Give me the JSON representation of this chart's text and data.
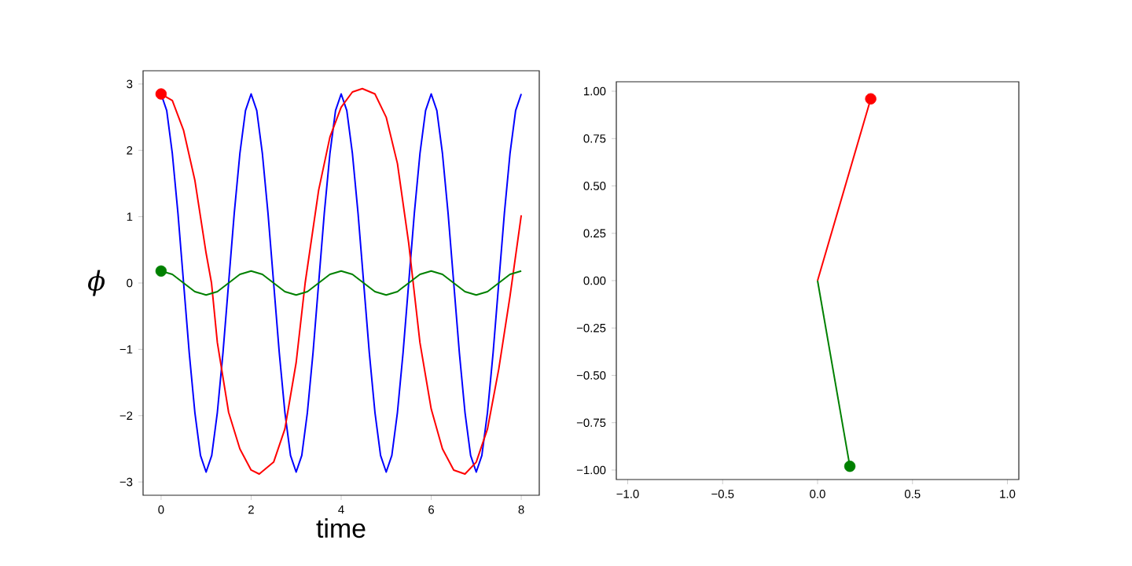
{
  "chart_data": [
    {
      "type": "line",
      "xlabel": "time",
      "ylabel": "ϕ",
      "xlim": [
        -0.4,
        8.4
      ],
      "ylim": [
        -3.2,
        3.2
      ],
      "xticks": [
        0,
        2,
        4,
        6,
        8
      ],
      "yticks": [
        {
          "value": -3,
          "label": "−3"
        },
        {
          "value": -2,
          "label": "−2"
        },
        {
          "value": -1,
          "label": "−1"
        },
        0,
        1,
        2,
        3
      ],
      "grid": false,
      "series": [
        {
          "color": "#0000ff",
          "x": [
            0,
            0.125,
            0.25,
            0.375,
            0.5,
            0.625,
            0.75,
            0.875,
            1,
            1.125,
            1.25,
            1.375,
            1.5,
            1.625,
            1.75,
            1.875,
            2,
            2.125,
            2.25,
            2.375,
            2.5,
            2.625,
            2.75,
            2.875,
            3,
            3.125,
            3.25,
            3.375,
            3.5,
            3.625,
            3.75,
            3.875,
            4,
            4.125,
            4.25,
            4.375,
            4.5,
            4.625,
            4.75,
            4.875,
            5,
            5.125,
            5.25,
            5.375,
            5.5,
            5.625,
            5.75,
            5.875,
            6,
            6.125,
            6.25,
            6.375,
            6.5,
            6.625,
            6.75,
            6.875,
            7,
            7.125,
            7.25,
            7.375,
            7.5,
            7.625,
            7.75,
            7.875,
            8
          ],
          "values": [
            2.85,
            2.6,
            1.95,
            1.05,
            0,
            -1.05,
            -1.95,
            -2.6,
            -2.85,
            -2.6,
            -1.95,
            -1.05,
            0,
            1.05,
            1.95,
            2.6,
            2.85,
            2.6,
            1.95,
            1.05,
            0,
            -1.05,
            -1.95,
            -2.6,
            -2.85,
            -2.6,
            -1.95,
            -1.05,
            0,
            1.05,
            1.95,
            2.6,
            2.85,
            2.6,
            1.95,
            1.05,
            0,
            -1.05,
            -1.95,
            -2.6,
            -2.85,
            -2.6,
            -1.95,
            -1.05,
            0,
            1.05,
            1.95,
            2.6,
            2.85,
            2.6,
            1.95,
            1.05,
            0,
            -1.05,
            -1.95,
            -2.6,
            -2.85,
            -2.6,
            -1.95,
            -1.05,
            0,
            1.05,
            1.95,
            2.6,
            2.85
          ]
        },
        {
          "color": "#ff0000",
          "x": [
            0,
            0.25,
            0.5,
            0.75,
            1.0,
            1.12,
            1.25,
            1.5,
            1.75,
            2.0,
            2.18,
            2.5,
            2.75,
            3.0,
            3.2,
            3.5,
            3.75,
            4.0,
            4.25,
            4.47,
            4.75,
            5.0,
            5.25,
            5.5,
            5.6,
            5.75,
            6.0,
            6.25,
            6.5,
            6.75,
            7.0,
            7.25,
            7.5,
            7.75,
            8.0
          ],
          "values": [
            2.85,
            2.75,
            2.3,
            1.55,
            0.45,
            0,
            -0.9,
            -1.95,
            -2.5,
            -2.82,
            -2.88,
            -2.7,
            -2.2,
            -1.2,
            0,
            1.4,
            2.2,
            2.65,
            2.88,
            2.93,
            2.85,
            2.5,
            1.8,
            0.6,
            0,
            -0.9,
            -1.9,
            -2.5,
            -2.82,
            -2.88,
            -2.7,
            -2.2,
            -1.3,
            -0.2,
            1.02
          ]
        },
        {
          "color": "#008000",
          "x": [
            0,
            0.25,
            0.5,
            0.75,
            1,
            1.25,
            1.5,
            1.75,
            2,
            2.25,
            2.5,
            2.75,
            3,
            3.25,
            3.5,
            3.75,
            4,
            4.25,
            4.5,
            4.75,
            5,
            5.25,
            5.5,
            5.75,
            6,
            6.25,
            6.5,
            6.75,
            7,
            7.25,
            7.5,
            7.75,
            8
          ],
          "values": [
            0.18,
            0.13,
            0,
            -0.13,
            -0.18,
            -0.13,
            0,
            0.13,
            0.18,
            0.13,
            0,
            -0.13,
            -0.18,
            -0.13,
            0,
            0.13,
            0.18,
            0.13,
            0,
            -0.13,
            -0.18,
            -0.13,
            0,
            0.13,
            0.18,
            0.13,
            0,
            -0.13,
            -0.18,
            -0.13,
            0,
            0.13,
            0.18
          ]
        },
        {
          "type": "scatter",
          "marker": "circle",
          "color": "#ff0000",
          "x": [
            0
          ],
          "values": [
            2.85
          ]
        },
        {
          "type": "scatter",
          "marker": "circle",
          "color": "#008000",
          "x": [
            0
          ],
          "values": [
            0.18
          ]
        }
      ]
    },
    {
      "type": "line",
      "xlim": [
        -1.06,
        1.06
      ],
      "ylim": [
        -1.05,
        1.05
      ],
      "grid": false,
      "xticks": [
        {
          "value": -1,
          "label": "−1.0"
        },
        {
          "value": -0.5,
          "label": "−0.5"
        },
        {
          "value": 0,
          "label": "0.0"
        },
        {
          "value": 0.5,
          "label": "0.5"
        },
        {
          "value": 1,
          "label": "1.0"
        }
      ],
      "yticks": [
        {
          "value": -1,
          "label": "−1.00"
        },
        {
          "value": -0.75,
          "label": "−0.75"
        },
        {
          "value": -0.5,
          "label": "−0.50"
        },
        {
          "value": -0.25,
          "label": "−0.25"
        },
        {
          "value": 0,
          "label": "0.00"
        },
        {
          "value": 0.25,
          "label": "0.25"
        },
        {
          "value": 0.5,
          "label": "0.50"
        },
        {
          "value": 0.75,
          "label": "0.75"
        },
        {
          "value": 1,
          "label": "1.00"
        }
      ],
      "series": [
        {
          "color": "#ff0000",
          "x": [
            0,
            0.28
          ],
          "values": [
            0,
            0.96
          ]
        },
        {
          "color": "#008000",
          "x": [
            0,
            0.17
          ],
          "values": [
            0,
            -0.98
          ]
        },
        {
          "type": "scatter",
          "marker": "circle",
          "color": "#ff0000",
          "x": [
            0.28
          ],
          "values": [
            0.96
          ]
        },
        {
          "type": "scatter",
          "marker": "circle",
          "color": "#008000",
          "x": [
            0.17
          ],
          "values": [
            -0.98
          ]
        }
      ]
    }
  ]
}
